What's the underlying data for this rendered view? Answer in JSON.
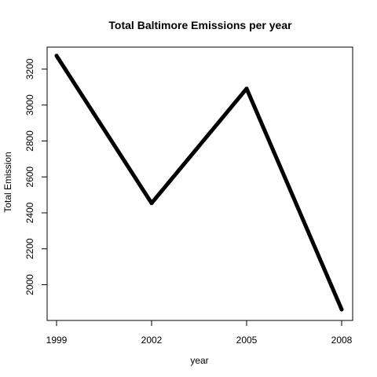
{
  "chart_data": {
    "type": "line",
    "title": "Total Baltimore Emissions per year",
    "xlabel": "year",
    "ylabel": "Total Emission",
    "x": [
      1999,
      2002,
      2005,
      2008
    ],
    "series": [
      {
        "values": [
          3274.18,
          2453.92,
          3091.35,
          1862.28
        ]
      }
    ],
    "xlim": [
      1999,
      2008
    ],
    "ylim": [
      1862.28,
      3274.18
    ],
    "xticks": [
      1999,
      2002,
      2005,
      2008
    ],
    "yticks": [
      2000,
      2200,
      2400,
      2600,
      2800,
      3000,
      3200
    ],
    "grid": false,
    "line_color": "#000000"
  }
}
